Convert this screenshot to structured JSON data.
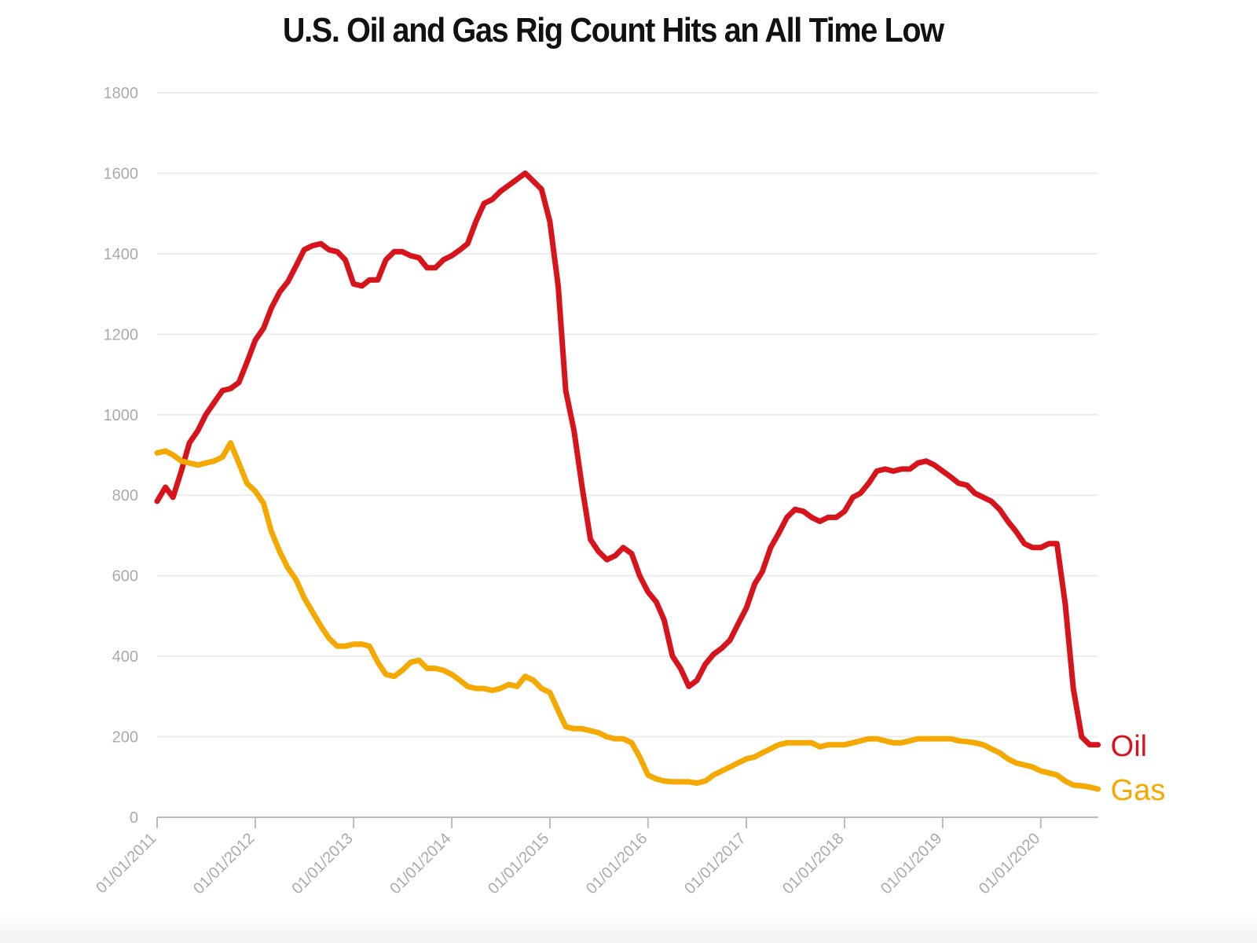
{
  "chart_data": {
    "type": "line",
    "title": "U.S. Oil and Gas Rig Count Hits an All Time Low",
    "xlabel": "",
    "ylabel": "",
    "ylim": [
      0,
      1800
    ],
    "yticks": [
      0,
      200,
      400,
      600,
      800,
      1000,
      1200,
      1400,
      1600,
      1800
    ],
    "xticks": [
      "01/01/2011",
      "01/01/2012",
      "01/01/2013",
      "01/01/2014",
      "01/01/2015",
      "01/01/2016",
      "01/01/2017",
      "01/01/2018",
      "01/01/2019",
      "01/01/2020"
    ],
    "x_start": "2011-01-01",
    "x_end": "2020-08-01",
    "grid": true,
    "legend": "end-of-line labels",
    "series": [
      {
        "name": "Oil",
        "color": "#d7141c",
        "points": [
          [
            "2011-01-01",
            785
          ],
          [
            "2011-02-01",
            820
          ],
          [
            "2011-03-01",
            795
          ],
          [
            "2011-04-01",
            860
          ],
          [
            "2011-05-01",
            930
          ],
          [
            "2011-06-01",
            960
          ],
          [
            "2011-07-01",
            1000
          ],
          [
            "2011-08-01",
            1030
          ],
          [
            "2011-09-01",
            1060
          ],
          [
            "2011-10-01",
            1065
          ],
          [
            "2011-11-01",
            1080
          ],
          [
            "2011-12-01",
            1130
          ],
          [
            "2012-01-01",
            1185
          ],
          [
            "2012-02-01",
            1215
          ],
          [
            "2012-03-01",
            1265
          ],
          [
            "2012-04-01",
            1305
          ],
          [
            "2012-05-01",
            1330
          ],
          [
            "2012-06-01",
            1370
          ],
          [
            "2012-07-01",
            1410
          ],
          [
            "2012-08-01",
            1420
          ],
          [
            "2012-09-01",
            1425
          ],
          [
            "2012-10-01",
            1410
          ],
          [
            "2012-11-01",
            1405
          ],
          [
            "2012-12-01",
            1385
          ],
          [
            "2013-01-01",
            1325
          ],
          [
            "2013-02-01",
            1320
          ],
          [
            "2013-03-01",
            1335
          ],
          [
            "2013-04-01",
            1335
          ],
          [
            "2013-05-01",
            1385
          ],
          [
            "2013-06-01",
            1405
          ],
          [
            "2013-07-01",
            1405
          ],
          [
            "2013-08-01",
            1395
          ],
          [
            "2013-09-01",
            1390
          ],
          [
            "2013-10-01",
            1365
          ],
          [
            "2013-11-01",
            1365
          ],
          [
            "2013-12-01",
            1385
          ],
          [
            "2014-01-01",
            1395
          ],
          [
            "2014-02-01",
            1410
          ],
          [
            "2014-03-01",
            1425
          ],
          [
            "2014-04-01",
            1480
          ],
          [
            "2014-05-01",
            1525
          ],
          [
            "2014-06-01",
            1535
          ],
          [
            "2014-07-01",
            1555
          ],
          [
            "2014-08-01",
            1570
          ],
          [
            "2014-09-01",
            1585
          ],
          [
            "2014-10-01",
            1600
          ],
          [
            "2014-11-01",
            1580
          ],
          [
            "2014-12-01",
            1560
          ],
          [
            "2015-01-01",
            1480
          ],
          [
            "2015-02-01",
            1320
          ],
          [
            "2015-03-01",
            1060
          ],
          [
            "2015-04-01",
            960
          ],
          [
            "2015-05-01",
            820
          ],
          [
            "2015-06-01",
            690
          ],
          [
            "2015-07-01",
            660
          ],
          [
            "2015-08-01",
            640
          ],
          [
            "2015-09-01",
            650
          ],
          [
            "2015-10-01",
            670
          ],
          [
            "2015-11-01",
            655
          ],
          [
            "2015-12-01",
            600
          ],
          [
            "2016-01-01",
            560
          ],
          [
            "2016-02-01",
            535
          ],
          [
            "2016-03-01",
            490
          ],
          [
            "2016-04-01",
            400
          ],
          [
            "2016-05-01",
            370
          ],
          [
            "2016-06-01",
            325
          ],
          [
            "2016-07-01",
            340
          ],
          [
            "2016-08-01",
            380
          ],
          [
            "2016-09-01",
            405
          ],
          [
            "2016-10-01",
            420
          ],
          [
            "2016-11-01",
            440
          ],
          [
            "2016-12-01",
            480
          ],
          [
            "2017-01-01",
            520
          ],
          [
            "2017-02-01",
            580
          ],
          [
            "2017-03-01",
            610
          ],
          [
            "2017-04-01",
            670
          ],
          [
            "2017-05-01",
            705
          ],
          [
            "2017-06-01",
            745
          ],
          [
            "2017-07-01",
            765
          ],
          [
            "2017-08-01",
            760
          ],
          [
            "2017-09-01",
            745
          ],
          [
            "2017-10-01",
            735
          ],
          [
            "2017-11-01",
            745
          ],
          [
            "2017-12-01",
            745
          ],
          [
            "2018-01-01",
            760
          ],
          [
            "2018-02-01",
            795
          ],
          [
            "2018-03-01",
            805
          ],
          [
            "2018-04-01",
            830
          ],
          [
            "2018-05-01",
            860
          ],
          [
            "2018-06-01",
            865
          ],
          [
            "2018-07-01",
            860
          ],
          [
            "2018-08-01",
            865
          ],
          [
            "2018-09-01",
            865
          ],
          [
            "2018-10-01",
            880
          ],
          [
            "2018-11-01",
            885
          ],
          [
            "2018-12-01",
            875
          ],
          [
            "2019-01-01",
            860
          ],
          [
            "2019-02-01",
            845
          ],
          [
            "2019-03-01",
            830
          ],
          [
            "2019-04-01",
            825
          ],
          [
            "2019-05-01",
            805
          ],
          [
            "2019-06-01",
            795
          ],
          [
            "2019-07-01",
            785
          ],
          [
            "2019-08-01",
            765
          ],
          [
            "2019-09-01",
            735
          ],
          [
            "2019-10-01",
            710
          ],
          [
            "2019-11-01",
            680
          ],
          [
            "2019-12-01",
            670
          ],
          [
            "2020-01-01",
            670
          ],
          [
            "2020-02-01",
            680
          ],
          [
            "2020-03-01",
            680
          ],
          [
            "2020-04-01",
            530
          ],
          [
            "2020-05-01",
            320
          ],
          [
            "2020-06-01",
            200
          ],
          [
            "2020-07-01",
            180
          ],
          [
            "2020-08-01",
            180
          ]
        ]
      },
      {
        "name": "Gas",
        "color": "#f5a800",
        "points": [
          [
            "2011-01-01",
            905
          ],
          [
            "2011-02-01",
            910
          ],
          [
            "2011-03-01",
            900
          ],
          [
            "2011-04-01",
            885
          ],
          [
            "2011-05-01",
            880
          ],
          [
            "2011-06-01",
            875
          ],
          [
            "2011-07-01",
            880
          ],
          [
            "2011-08-01",
            885
          ],
          [
            "2011-09-01",
            895
          ],
          [
            "2011-10-01",
            930
          ],
          [
            "2011-11-01",
            880
          ],
          [
            "2011-12-01",
            830
          ],
          [
            "2012-01-01",
            810
          ],
          [
            "2012-02-01",
            780
          ],
          [
            "2012-03-01",
            710
          ],
          [
            "2012-04-01",
            660
          ],
          [
            "2012-05-01",
            620
          ],
          [
            "2012-06-01",
            590
          ],
          [
            "2012-07-01",
            545
          ],
          [
            "2012-08-01",
            510
          ],
          [
            "2012-09-01",
            475
          ],
          [
            "2012-10-01",
            445
          ],
          [
            "2012-11-01",
            425
          ],
          [
            "2012-12-01",
            425
          ],
          [
            "2013-01-01",
            430
          ],
          [
            "2013-02-01",
            430
          ],
          [
            "2013-03-01",
            425
          ],
          [
            "2013-04-01",
            385
          ],
          [
            "2013-05-01",
            355
          ],
          [
            "2013-06-01",
            350
          ],
          [
            "2013-07-01",
            365
          ],
          [
            "2013-08-01",
            385
          ],
          [
            "2013-09-01",
            390
          ],
          [
            "2013-10-01",
            370
          ],
          [
            "2013-11-01",
            370
          ],
          [
            "2013-12-01",
            365
          ],
          [
            "2014-01-01",
            355
          ],
          [
            "2014-02-01",
            340
          ],
          [
            "2014-03-01",
            325
          ],
          [
            "2014-04-01",
            320
          ],
          [
            "2014-05-01",
            320
          ],
          [
            "2014-06-01",
            315
          ],
          [
            "2014-07-01",
            320
          ],
          [
            "2014-08-01",
            330
          ],
          [
            "2014-09-01",
            325
          ],
          [
            "2014-10-01",
            350
          ],
          [
            "2014-11-01",
            340
          ],
          [
            "2014-12-01",
            320
          ],
          [
            "2015-01-01",
            310
          ],
          [
            "2015-02-01",
            265
          ],
          [
            "2015-03-01",
            225
          ],
          [
            "2015-04-01",
            220
          ],
          [
            "2015-05-01",
            220
          ],
          [
            "2015-06-01",
            215
          ],
          [
            "2015-07-01",
            210
          ],
          [
            "2015-08-01",
            200
          ],
          [
            "2015-09-01",
            195
          ],
          [
            "2015-10-01",
            195
          ],
          [
            "2015-11-01",
            185
          ],
          [
            "2015-12-01",
            150
          ],
          [
            "2016-01-01",
            105
          ],
          [
            "2016-02-01",
            95
          ],
          [
            "2016-03-01",
            90
          ],
          [
            "2016-04-01",
            88
          ],
          [
            "2016-05-01",
            88
          ],
          [
            "2016-06-01",
            88
          ],
          [
            "2016-07-01",
            85
          ],
          [
            "2016-08-01",
            90
          ],
          [
            "2016-09-01",
            105
          ],
          [
            "2016-10-01",
            115
          ],
          [
            "2016-11-01",
            125
          ],
          [
            "2016-12-01",
            135
          ],
          [
            "2017-01-01",
            145
          ],
          [
            "2017-02-01",
            150
          ],
          [
            "2017-03-01",
            160
          ],
          [
            "2017-04-01",
            170
          ],
          [
            "2017-05-01",
            180
          ],
          [
            "2017-06-01",
            185
          ],
          [
            "2017-07-01",
            185
          ],
          [
            "2017-08-01",
            185
          ],
          [
            "2017-09-01",
            185
          ],
          [
            "2017-10-01",
            175
          ],
          [
            "2017-11-01",
            180
          ],
          [
            "2017-12-01",
            180
          ],
          [
            "2018-01-01",
            180
          ],
          [
            "2018-02-01",
            185
          ],
          [
            "2018-03-01",
            190
          ],
          [
            "2018-04-01",
            195
          ],
          [
            "2018-05-01",
            195
          ],
          [
            "2018-06-01",
            190
          ],
          [
            "2018-07-01",
            185
          ],
          [
            "2018-08-01",
            185
          ],
          [
            "2018-09-01",
            190
          ],
          [
            "2018-10-01",
            195
          ],
          [
            "2018-11-01",
            195
          ],
          [
            "2018-12-01",
            195
          ],
          [
            "2019-01-01",
            195
          ],
          [
            "2019-02-01",
            195
          ],
          [
            "2019-03-01",
            190
          ],
          [
            "2019-04-01",
            188
          ],
          [
            "2019-05-01",
            185
          ],
          [
            "2019-06-01",
            180
          ],
          [
            "2019-07-01",
            170
          ],
          [
            "2019-08-01",
            160
          ],
          [
            "2019-09-01",
            145
          ],
          [
            "2019-10-01",
            135
          ],
          [
            "2019-11-01",
            130
          ],
          [
            "2019-12-01",
            125
          ],
          [
            "2020-01-01",
            115
          ],
          [
            "2020-02-01",
            110
          ],
          [
            "2020-03-01",
            105
          ],
          [
            "2020-04-01",
            90
          ],
          [
            "2020-05-01",
            80
          ],
          [
            "2020-06-01",
            78
          ],
          [
            "2020-07-01",
            75
          ],
          [
            "2020-08-01",
            70
          ]
        ]
      }
    ]
  }
}
